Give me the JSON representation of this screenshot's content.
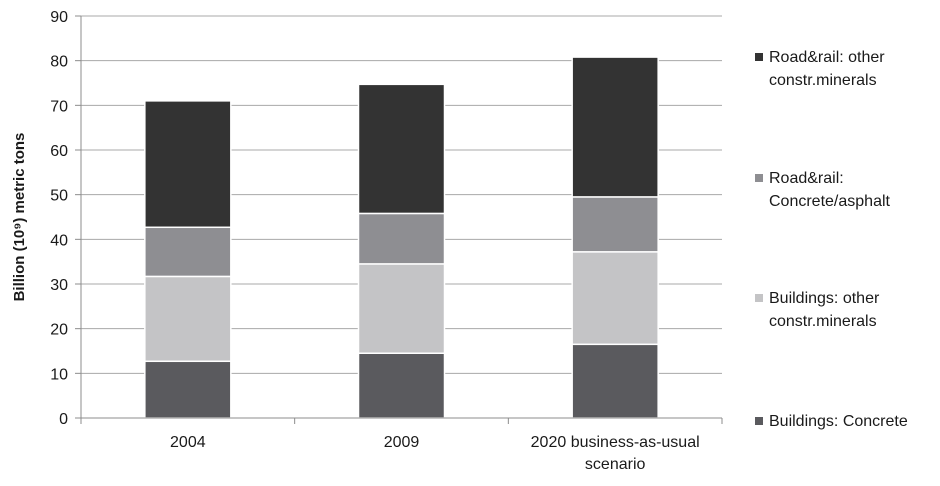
{
  "chart_data": {
    "type": "bar",
    "stacked": true,
    "categories": [
      [
        "2004"
      ],
      [
        "2009"
      ],
      [
        "2020 business-as-usual",
        "scenario"
      ]
    ],
    "series": [
      {
        "name": "Buildings: Concrete",
        "legend_lines": [
          "Buildings: Concrete"
        ],
        "color": "#5a5a5e",
        "values": [
          12.7,
          14.5,
          16.5
        ]
      },
      {
        "name": "Buildings: other constr.minerals",
        "legend_lines": [
          "Buildings: other",
          "constr.minerals"
        ],
        "color": "#c4c4c6",
        "values": [
          19.0,
          20.0,
          20.7
        ]
      },
      {
        "name": "Road&rail: Concrete/asphalt",
        "legend_lines": [
          "Road&rail:",
          "Concrete/asphalt"
        ],
        "color": "#8e8e92",
        "values": [
          11.0,
          11.3,
          12.3
        ]
      },
      {
        "name": "Road&rail: other constr.minerals",
        "legend_lines": [
          "Road&rail: other",
          "constr.minerals"
        ],
        "color": "#333333",
        "values": [
          28.3,
          28.9,
          31.3
        ]
      }
    ],
    "ylabel": "Billion (10⁹) metric tons",
    "ylim": [
      0,
      90
    ],
    "yticks": [
      0,
      10,
      20,
      30,
      40,
      50,
      60,
      70,
      80,
      90
    ],
    "grid": true,
    "legend_position": "right"
  }
}
